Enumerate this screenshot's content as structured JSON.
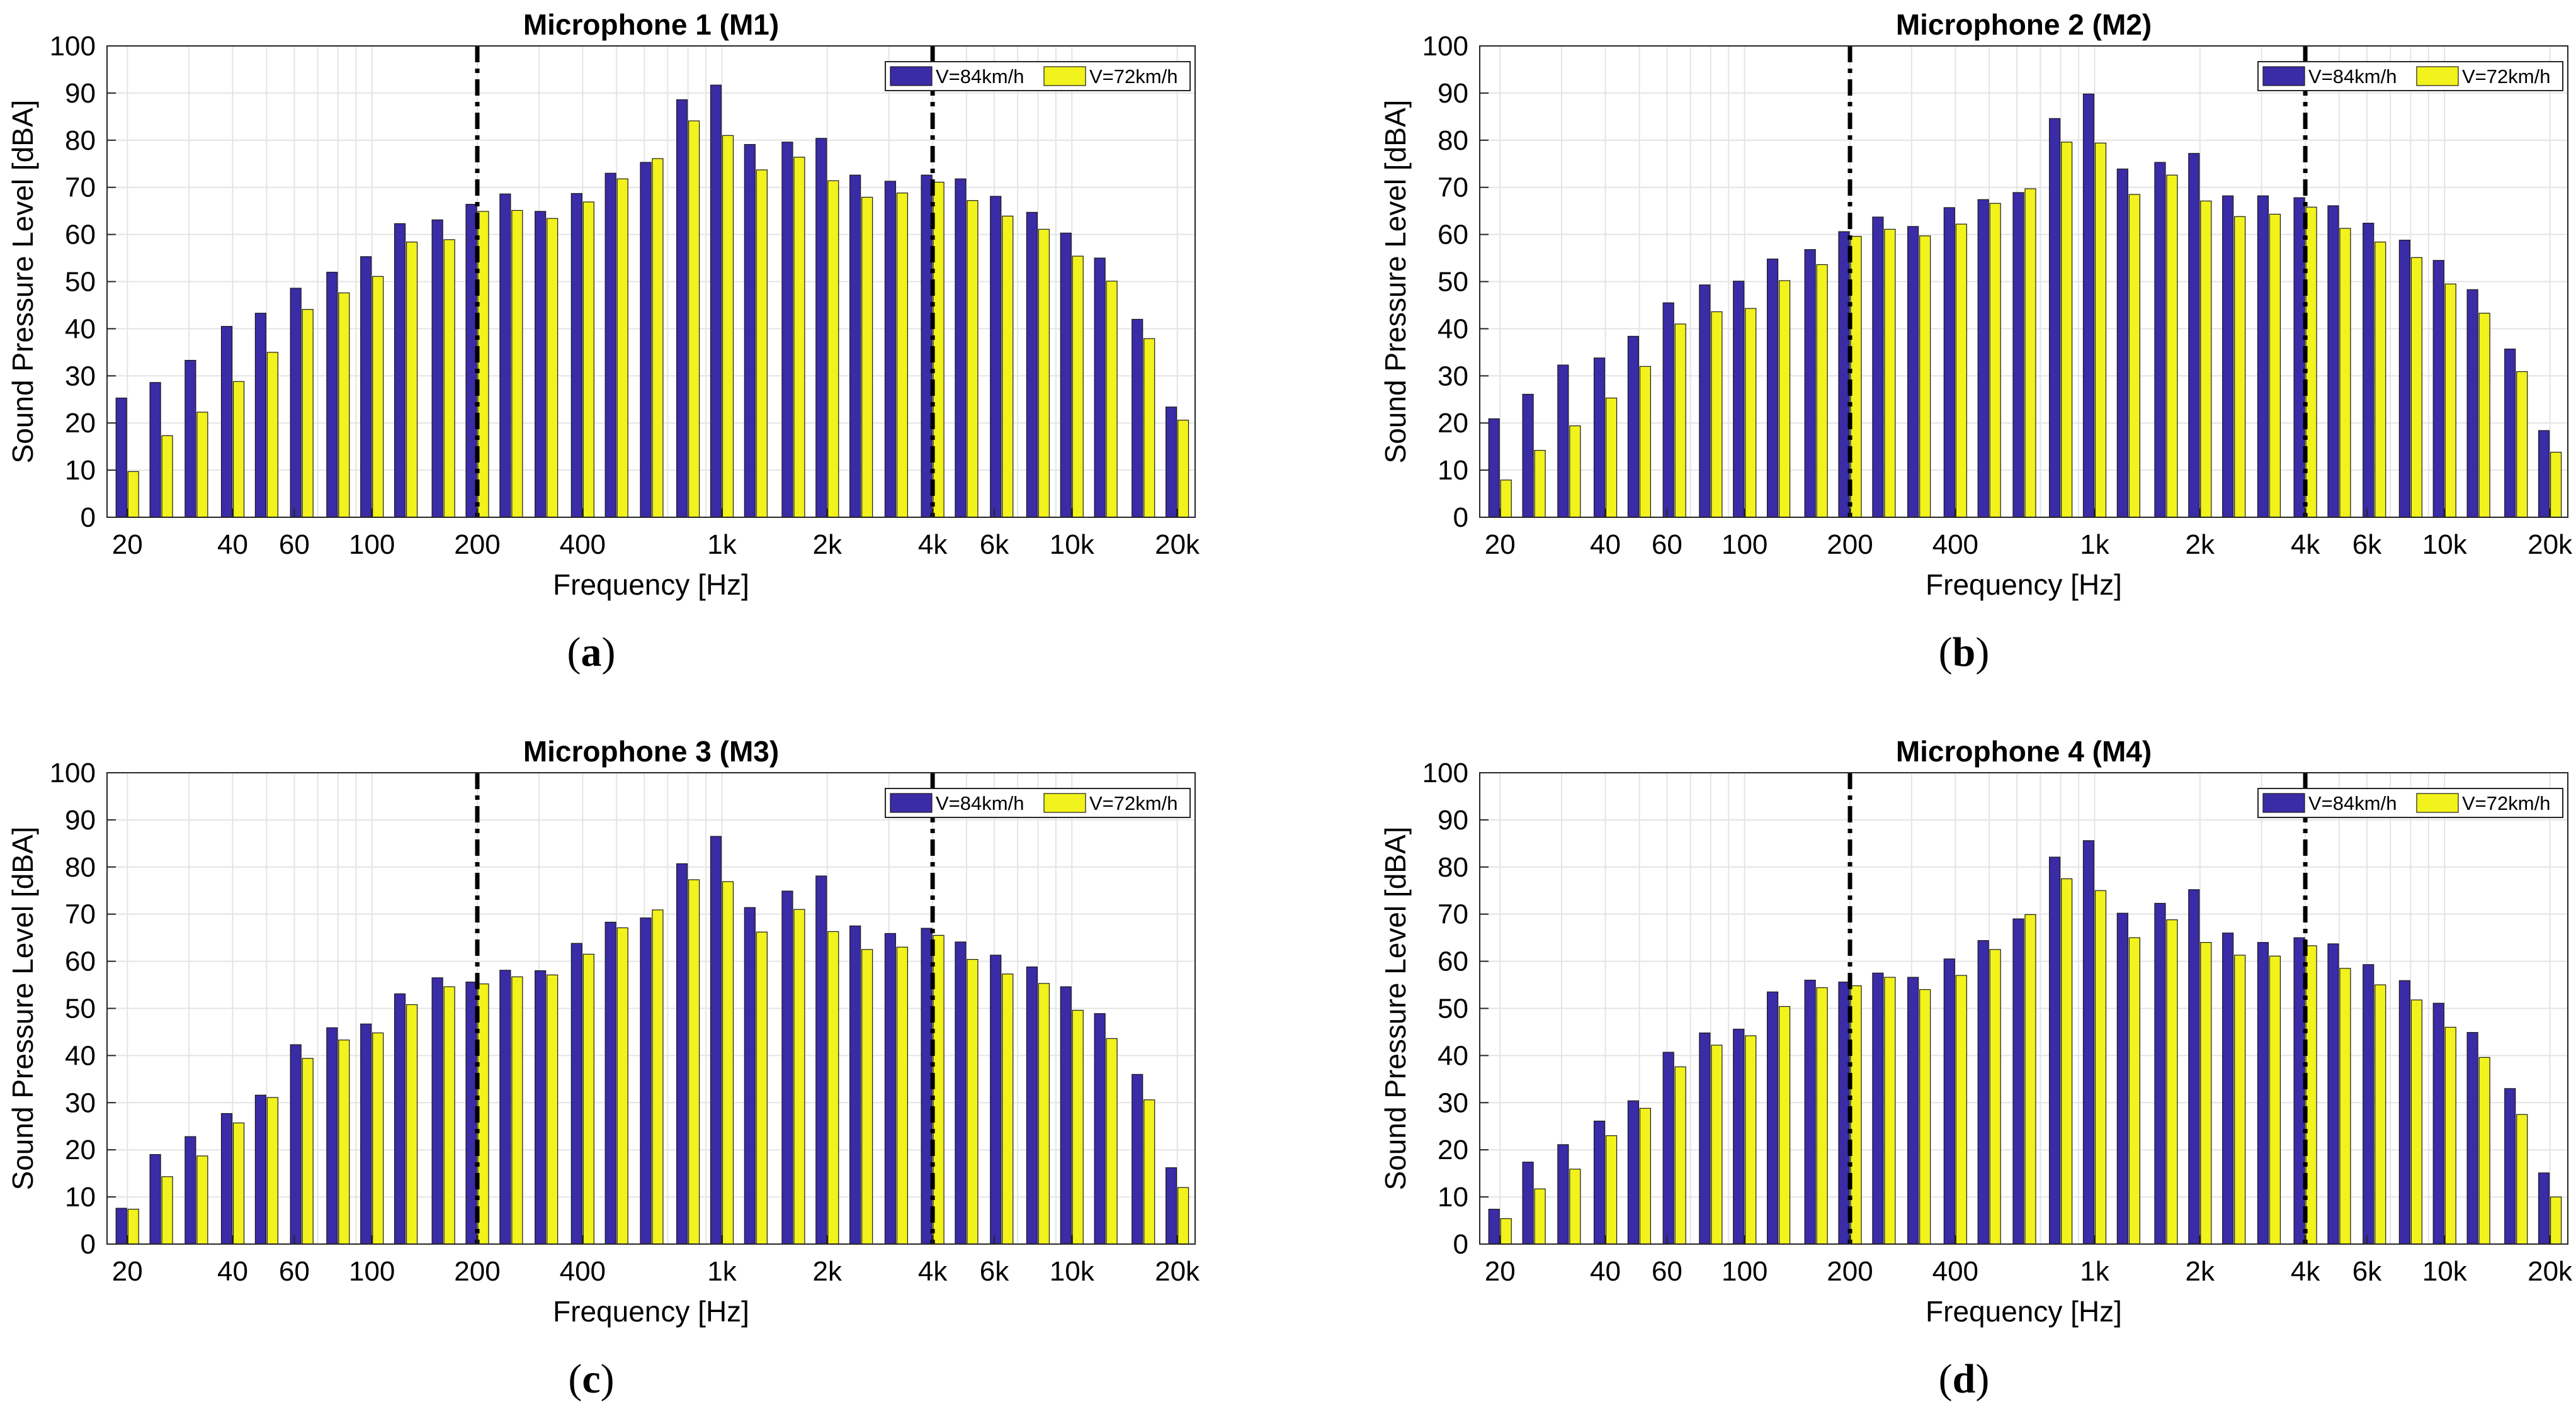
{
  "figure": {
    "colors": {
      "series1": "#3a2ba6",
      "series2": "#f2f21c",
      "grid": "#e4e4e4",
      "marker_line": "#000000"
    },
    "marker_lines_hz": [
      200,
      4000
    ],
    "x_ticks": [
      {
        "hz": 20,
        "label": "20"
      },
      {
        "hz": 40,
        "label": "40"
      },
      {
        "hz": 60,
        "label": "60"
      },
      {
        "hz": 100,
        "label": "100"
      },
      {
        "hz": 200,
        "label": "200"
      },
      {
        "hz": 400,
        "label": "400"
      },
      {
        "hz": 1000,
        "label": "1k"
      },
      {
        "hz": 2000,
        "label": "2k"
      },
      {
        "hz": 4000,
        "label": "4k"
      },
      {
        "hz": 6000,
        "label": "6k"
      },
      {
        "hz": 10000,
        "label": "10k"
      },
      {
        "hz": 20000,
        "label": "20k"
      }
    ]
  },
  "chart_data": [
    {
      "type": "bar",
      "panel_label": "a",
      "title": "Microphone 1 (M1)",
      "xlabel": "Frequency [Hz]",
      "ylabel": "Sound Pressure Level [dBA]",
      "ylim": [
        0,
        100
      ],
      "yticks": [
        0,
        10,
        20,
        30,
        40,
        50,
        60,
        70,
        80,
        90,
        100
      ],
      "grid": true,
      "legend_position": "top-right",
      "categories": [
        20,
        25,
        31.5,
        40,
        50,
        63,
        80,
        100,
        125,
        160,
        200,
        250,
        315,
        400,
        500,
        630,
        800,
        1000,
        1250,
        1600,
        2000,
        2500,
        3150,
        4000,
        5000,
        6300,
        8000,
        10000,
        12500,
        16000,
        20000
      ],
      "series": [
        {
          "name": "V=84km/h",
          "values": [
            25.3,
            28.6,
            33.3,
            40.5,
            43.3,
            48.6,
            52.0,
            55.3,
            62.3,
            63.1,
            66.4,
            68.6,
            64.9,
            68.7,
            73.0,
            75.3,
            88.6,
            91.7,
            79.1,
            79.6,
            80.4,
            72.6,
            71.3,
            72.6,
            71.8,
            68.1,
            64.7,
            60.3,
            55.0,
            42.0,
            23.4
          ]
        },
        {
          "name": "V=72km/h",
          "values": [
            9.7,
            17.3,
            22.3,
            28.8,
            35.0,
            44.1,
            47.6,
            51.1,
            58.4,
            58.9,
            64.9,
            65.1,
            63.4,
            66.9,
            71.8,
            76.1,
            84.1,
            81.0,
            73.7,
            76.4,
            71.4,
            67.9,
            68.8,
            71.1,
            67.2,
            63.9,
            61.1,
            55.4,
            50.1,
            37.9,
            20.6
          ]
        }
      ]
    },
    {
      "type": "bar",
      "panel_label": "b",
      "title": "Microphone 2 (M2)",
      "xlabel": "Frequency [Hz]",
      "ylabel": "Sound Pressure Level [dBA]",
      "ylim": [
        0,
        100
      ],
      "yticks": [
        0,
        10,
        20,
        30,
        40,
        50,
        60,
        70,
        80,
        90,
        100
      ],
      "grid": true,
      "legend_position": "top-right",
      "categories": [
        20,
        25,
        31.5,
        40,
        50,
        63,
        80,
        100,
        125,
        160,
        200,
        250,
        315,
        400,
        500,
        630,
        800,
        1000,
        1250,
        1600,
        2000,
        2500,
        3150,
        4000,
        5000,
        6300,
        8000,
        10000,
        12500,
        16000,
        20000
      ],
      "series": [
        {
          "name": "V=84km/h",
          "values": [
            20.9,
            26.1,
            32.3,
            33.8,
            38.4,
            45.5,
            49.3,
            50.1,
            54.8,
            56.8,
            60.6,
            63.7,
            61.7,
            65.7,
            67.4,
            68.9,
            84.6,
            89.8,
            73.9,
            75.3,
            77.2,
            68.2,
            68.2,
            67.8,
            66.1,
            62.4,
            58.8,
            54.5,
            48.3,
            35.7,
            18.4
          ]
        },
        {
          "name": "V=72km/h",
          "values": [
            7.9,
            14.2,
            19.4,
            25.3,
            32.0,
            41.0,
            43.6,
            44.3,
            50.2,
            53.6,
            59.6,
            61.1,
            59.7,
            62.2,
            66.6,
            69.7,
            79.6,
            79.4,
            68.5,
            72.6,
            67.1,
            63.8,
            64.3,
            65.8,
            61.3,
            58.4,
            55.1,
            49.5,
            43.3,
            30.9,
            13.8
          ]
        }
      ]
    },
    {
      "type": "bar",
      "panel_label": "c",
      "title": "Microphone 3 (M3)",
      "xlabel": "Frequency [Hz]",
      "ylabel": "Sound Pressure Level [dBA]",
      "ylim": [
        0,
        100
      ],
      "yticks": [
        0,
        10,
        20,
        30,
        40,
        50,
        60,
        70,
        80,
        90,
        100
      ],
      "grid": true,
      "legend_position": "top-right",
      "categories": [
        20,
        25,
        31.5,
        40,
        50,
        63,
        80,
        100,
        125,
        160,
        200,
        250,
        315,
        400,
        500,
        630,
        800,
        1000,
        1250,
        1600,
        2000,
        2500,
        3150,
        4000,
        5000,
        6300,
        8000,
        10000,
        12500,
        16000,
        20000
      ],
      "series": [
        {
          "name": "V=84km/h",
          "values": [
            7.6,
            19.0,
            22.8,
            27.7,
            31.6,
            42.3,
            45.9,
            46.7,
            53.1,
            56.5,
            55.6,
            58.1,
            58.0,
            63.8,
            68.3,
            69.2,
            80.7,
            86.5,
            71.4,
            74.9,
            78.1,
            67.5,
            65.9,
            67.0,
            64.1,
            61.3,
            58.8,
            54.6,
            48.9,
            36.0,
            16.2
          ]
        },
        {
          "name": "V=72km/h",
          "values": [
            7.4,
            14.3,
            18.7,
            25.7,
            31.1,
            39.4,
            43.3,
            44.8,
            50.8,
            54.6,
            55.2,
            56.7,
            57.1,
            61.5,
            67.1,
            70.9,
            77.3,
            76.9,
            66.2,
            71.0,
            66.3,
            62.5,
            63.0,
            65.5,
            60.4,
            57.3,
            55.3,
            49.6,
            43.6,
            30.6,
            12.0
          ]
        }
      ]
    },
    {
      "type": "bar",
      "panel_label": "d",
      "title": "Microphone 4 (M4)",
      "xlabel": "Frequency [Hz]",
      "ylabel": "Sound Pressure Level [dBA]",
      "ylim": [
        0,
        100
      ],
      "yticks": [
        0,
        10,
        20,
        30,
        40,
        50,
        60,
        70,
        80,
        90,
        100
      ],
      "grid": true,
      "legend_position": "top-right",
      "categories": [
        20,
        25,
        31.5,
        40,
        50,
        63,
        80,
        100,
        125,
        160,
        200,
        250,
        315,
        400,
        500,
        630,
        800,
        1000,
        1250,
        1600,
        2000,
        2500,
        3150,
        4000,
        5000,
        6300,
        8000,
        10000,
        12500,
        16000,
        20000
      ],
      "series": [
        {
          "name": "V=84km/h",
          "values": [
            7.4,
            17.4,
            21.1,
            26.1,
            30.4,
            40.7,
            44.8,
            45.6,
            53.5,
            56.0,
            55.6,
            57.5,
            56.6,
            60.5,
            64.4,
            69.0,
            82.1,
            85.6,
            70.2,
            72.3,
            75.2,
            66.0,
            64.0,
            65.0,
            63.7,
            59.3,
            55.9,
            51.1,
            44.9,
            33.0,
            15.1
          ]
        },
        {
          "name": "V=72km/h",
          "values": [
            5.4,
            11.7,
            15.9,
            23.0,
            28.8,
            37.6,
            42.2,
            44.2,
            50.4,
            54.4,
            54.8,
            56.6,
            54.0,
            57.0,
            62.5,
            69.9,
            77.5,
            75.0,
            65.0,
            68.8,
            64.0,
            61.3,
            61.1,
            63.3,
            58.5,
            55.0,
            51.8,
            46.0,
            39.6,
            27.5,
            10.0
          ]
        }
      ]
    }
  ]
}
